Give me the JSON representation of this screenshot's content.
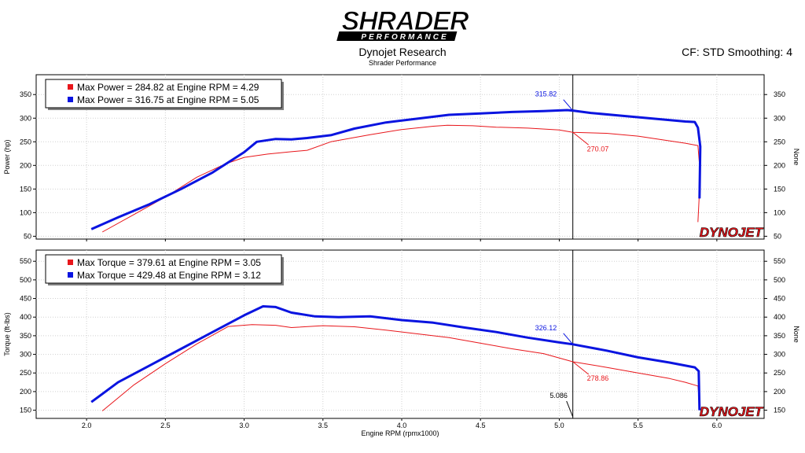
{
  "header": {
    "logo_text_main": "SHRADER",
    "logo_text_sub": "PERFORMANCE",
    "title": "Dynojet Research",
    "subtitle": "Shrader Performance",
    "cf_smoothing": "CF: STD Smoothing: 4",
    "watermark": "DYNOJET"
  },
  "colors": {
    "run1": "#e8161b",
    "run2": "#0a14e0",
    "cursor": "#000000",
    "frame": "#000000"
  },
  "chart_data": [
    {
      "type": "line",
      "name": "power",
      "ylabel": "Power (hp)",
      "y2label": "None",
      "xlim": [
        1.68,
        6.3
      ],
      "ylim": [
        44,
        392
      ],
      "yticks": [
        50,
        100,
        150,
        200,
        250,
        300,
        350
      ],
      "grid": true,
      "legend": [
        {
          "label": "Max Power = 284.82 at Engine RPM = 4.29",
          "color": "#e8161b"
        },
        {
          "label": "Max Power = 316.75 at Engine RPM = 5.05",
          "color": "#0a14e0"
        }
      ],
      "series": [
        {
          "color": "#e8161b",
          "points": [
            [
              2.1,
              59
            ],
            [
              2.3,
              96
            ],
            [
              2.5,
              133
            ],
            [
              2.7,
              175
            ],
            [
              2.88,
              203
            ],
            [
              3.0,
              217
            ],
            [
              3.15,
              224
            ],
            [
              3.3,
              229
            ],
            [
              3.4,
              232
            ],
            [
              3.55,
              250
            ],
            [
              3.8,
              265
            ],
            [
              4.0,
              276
            ],
            [
              4.2,
              283
            ],
            [
              4.29,
              285
            ],
            [
              4.45,
              284
            ],
            [
              4.6,
              281
            ],
            [
              4.8,
              279
            ],
            [
              5.0,
              275
            ],
            [
              5.086,
              270
            ],
            [
              5.3,
              268
            ],
            [
              5.5,
              262
            ],
            [
              5.7,
              252
            ],
            [
              5.8,
              247
            ],
            [
              5.88,
              242
            ],
            [
              5.895,
              180
            ],
            [
              5.88,
              80
            ]
          ]
        },
        {
          "color": "#0a14e0",
          "points": [
            [
              2.03,
              65
            ],
            [
              2.2,
              90
            ],
            [
              2.4,
              118
            ],
            [
              2.6,
              150
            ],
            [
              2.8,
              185
            ],
            [
              3.0,
              228
            ],
            [
              3.08,
              250
            ],
            [
              3.2,
              256
            ],
            [
              3.3,
              255
            ],
            [
              3.4,
              258
            ],
            [
              3.55,
              264
            ],
            [
              3.7,
              278
            ],
            [
              3.9,
              291
            ],
            [
              4.1,
              299
            ],
            [
              4.3,
              307
            ],
            [
              4.5,
              310
            ],
            [
              4.7,
              313
            ],
            [
              4.9,
              315
            ],
            [
              5.05,
              317
            ],
            [
              5.086,
              316
            ],
            [
              5.2,
              311
            ],
            [
              5.4,
              305
            ],
            [
              5.6,
              299
            ],
            [
              5.8,
              293
            ],
            [
              5.86,
              292
            ],
            [
              5.88,
              280
            ],
            [
              5.895,
              240
            ],
            [
              5.89,
              130
            ]
          ]
        }
      ],
      "annotations": [
        {
          "label": "315.82",
          "x": 5.086,
          "y": 316,
          "color": "#0a14e0"
        },
        {
          "label": "270.07",
          "x": 5.086,
          "y": 270,
          "color": "#e8161b"
        }
      ]
    },
    {
      "type": "line",
      "name": "torque",
      "ylabel": "Torque (ft-lbs)",
      "y2label": "None",
      "xlim": [
        1.68,
        6.3
      ],
      "ylim": [
        128,
        580
      ],
      "yticks": [
        150,
        200,
        250,
        300,
        350,
        400,
        450,
        500,
        550
      ],
      "xticks": [
        2.0,
        2.5,
        3.0,
        3.5,
        4.0,
        4.5,
        5.0,
        5.5,
        6.0
      ],
      "xtick_labels": [
        "2.0",
        "2.5",
        "3.0",
        "3.5",
        "4.0",
        "4.5",
        "5.0",
        "5.5",
        "6.0"
      ],
      "xlabel": "Engine RPM (rpmx1000)",
      "grid": true,
      "legend": [
        {
          "label": "Max Torque = 379.61 at Engine RPM = 3.05",
          "color": "#e8161b"
        },
        {
          "label": "Max Torque = 429.48 at Engine RPM = 3.12",
          "color": "#0a14e0"
        }
      ],
      "series": [
        {
          "color": "#e8161b",
          "points": [
            [
              2.1,
              148
            ],
            [
              2.3,
              218
            ],
            [
              2.5,
              275
            ],
            [
              2.7,
              328
            ],
            [
              2.9,
              375
            ],
            [
              3.05,
              380
            ],
            [
              3.2,
              378
            ],
            [
              3.3,
              372
            ],
            [
              3.5,
              377
            ],
            [
              3.7,
              374
            ],
            [
              3.9,
              365
            ],
            [
              4.1,
              355
            ],
            [
              4.3,
              345
            ],
            [
              4.5,
              330
            ],
            [
              4.7,
              315
            ],
            [
              4.9,
              302
            ],
            [
              5.086,
              280
            ],
            [
              5.3,
              265
            ],
            [
              5.5,
              250
            ],
            [
              5.7,
              235
            ],
            [
              5.8,
              225
            ],
            [
              5.88,
              215
            ],
            [
              5.895,
              150
            ]
          ]
        },
        {
          "color": "#0a14e0",
          "points": [
            [
              2.03,
              172
            ],
            [
              2.2,
              225
            ],
            [
              2.4,
              270
            ],
            [
              2.6,
              315
            ],
            [
              2.8,
              360
            ],
            [
              3.0,
              405
            ],
            [
              3.12,
              429
            ],
            [
              3.2,
              427
            ],
            [
              3.3,
              412
            ],
            [
              3.45,
              402
            ],
            [
              3.6,
              400
            ],
            [
              3.8,
              402
            ],
            [
              4.0,
              392
            ],
            [
              4.2,
              385
            ],
            [
              4.4,
              372
            ],
            [
              4.6,
              360
            ],
            [
              4.8,
              345
            ],
            [
              5.0,
              332
            ],
            [
              5.086,
              327
            ],
            [
              5.3,
              310
            ],
            [
              5.5,
              292
            ],
            [
              5.7,
              278
            ],
            [
              5.86,
              265
            ],
            [
              5.885,
              255
            ],
            [
              5.89,
              150
            ]
          ]
        }
      ],
      "annotations": [
        {
          "label": "326.12",
          "x": 5.086,
          "y": 327,
          "color": "#0a14e0"
        },
        {
          "label": "278.86",
          "x": 5.086,
          "y": 280,
          "color": "#e8161b"
        },
        {
          "label": "5.086",
          "x": 5.086,
          "y": 128,
          "color": "#000000"
        }
      ]
    }
  ]
}
